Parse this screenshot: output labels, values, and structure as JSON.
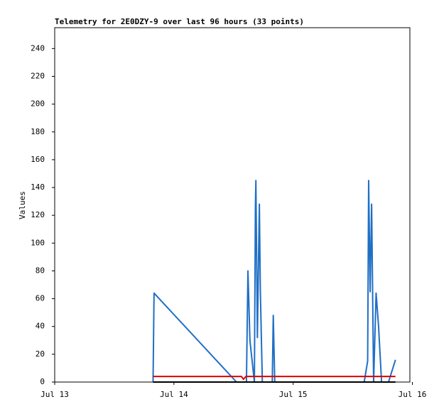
{
  "chart_data": {
    "type": "line",
    "title": "Telemetry for 2E0DZY-9 over last 96 hours (33 points)",
    "y_label": "Values",
    "xlim": [
      0,
      71.5
    ],
    "xticks": [
      {
        "value": 0,
        "label": "Jul 13"
      },
      {
        "value": 24,
        "label": "Jul 14"
      },
      {
        "value": 48,
        "label": "Jul 15"
      },
      {
        "value": 72,
        "label": "Jul 16"
      }
    ],
    "ylim": [
      0,
      255
    ],
    "yticks": [
      0,
      20,
      40,
      60,
      80,
      100,
      120,
      140,
      160,
      180,
      200,
      220,
      240
    ],
    "series": [
      {
        "color": "#1f6fc5",
        "x": [
          19.8,
          20.0,
          36.6,
          38.6,
          38.9,
          39.3,
          40.2,
          40.4,
          40.5,
          40.8,
          41.2,
          41.4,
          41.8,
          43.8,
          44.0,
          44.3,
          62.3,
          63.0,
          63.2,
          63.5,
          63.8,
          64.2,
          64.7,
          65.2,
          65.8,
          67.2,
          68.6
        ],
        "values": [
          0,
          64,
          0,
          0,
          80,
          30,
          0,
          125,
          145,
          32,
          128,
          65,
          0,
          0,
          48,
          0,
          0,
          15,
          145,
          65,
          128,
          0,
          64,
          40,
          0,
          0,
          16
        ]
      },
      {
        "color": "#e00000",
        "x": [
          19.8,
          37.6,
          38.0,
          38.5,
          68.6
        ],
        "values": [
          4,
          4,
          2,
          4,
          4
        ]
      },
      {
        "color": "#000000",
        "x": [
          19.8,
          68.6
        ],
        "values": [
          0,
          0
        ]
      }
    ]
  }
}
